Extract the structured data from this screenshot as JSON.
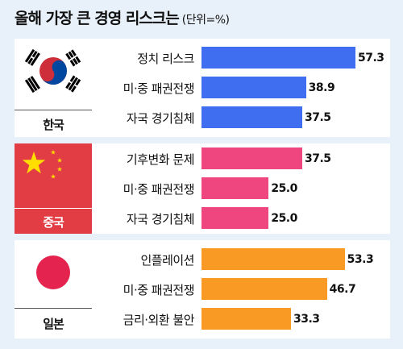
{
  "title": "올해 가장 큰 경영 리스크는",
  "unit": "(단위=%)",
  "chart_data": {
    "type": "bar",
    "orientation": "horizontal",
    "xlim": [
      0,
      60
    ],
    "colors": {
      "korea": "#3f6ff0",
      "china": "#f0467f",
      "japan": "#f99a24"
    },
    "groups": [
      {
        "country": "한국",
        "key": "korea",
        "categories": [
          "정치 리스크",
          "미·중 패권전쟁",
          "자국 경기침체"
        ],
        "values": [
          57.3,
          38.9,
          37.5
        ],
        "labels": [
          "57.3",
          "38.9",
          "37.5"
        ]
      },
      {
        "country": "중국",
        "key": "china",
        "categories": [
          "기후변화 문제",
          "미·중 패권전쟁",
          "자국 경기침체"
        ],
        "values": [
          37.5,
          25.0,
          25.0
        ],
        "labels": [
          "37.5",
          "25.0",
          "25.0"
        ]
      },
      {
        "country": "일본",
        "key": "japan",
        "categories": [
          "인플레이션",
          "미·중 패권전쟁",
          "금리·외환 불안"
        ],
        "values": [
          53.3,
          46.7,
          33.3
        ],
        "labels": [
          "53.3",
          "46.7",
          "33.3"
        ]
      }
    ]
  }
}
